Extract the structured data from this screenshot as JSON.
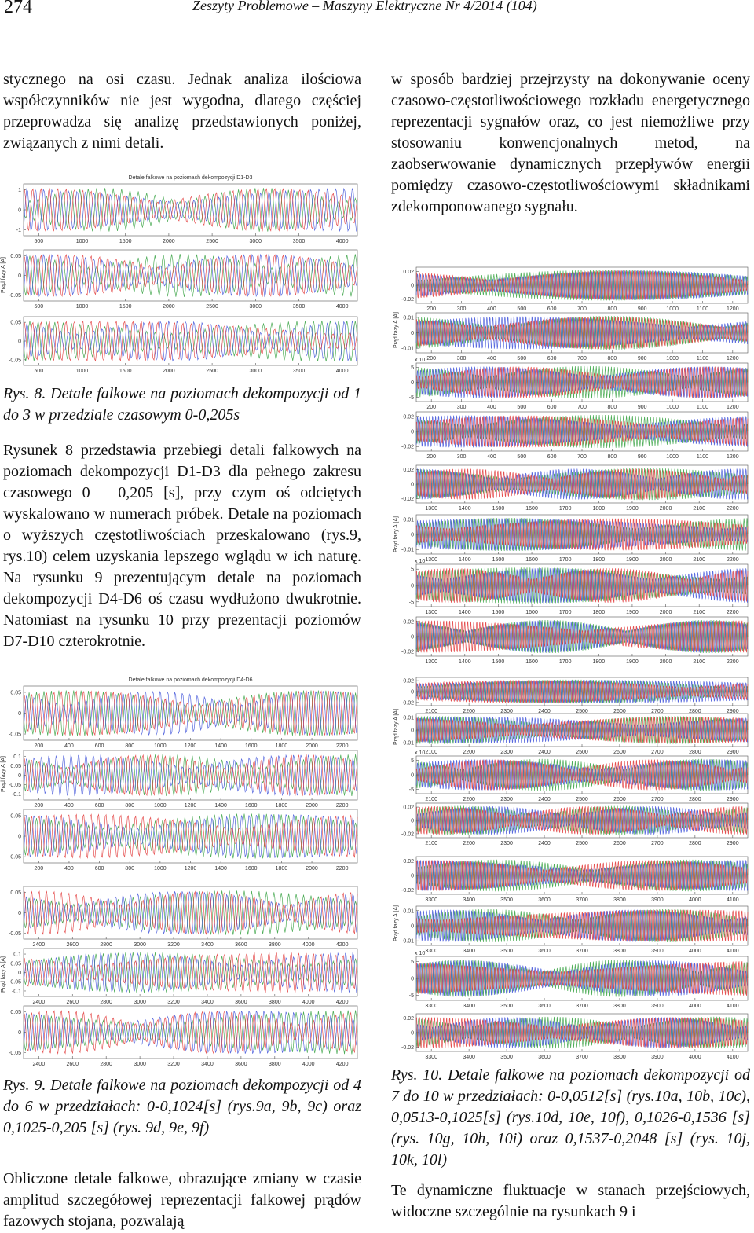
{
  "header": {
    "page_number": "274",
    "journal": "Zeszyty Problemowe – Maszyny Elektryczne Nr 4/2014 (104)"
  },
  "left_column": {
    "para1": "stycznego na osi czasu. Jednak analiza ilościowa współczynników nie jest wygodna, dlatego częściej przeprowadza się analizę przedstawionych poniżej, związanych z nimi detali.",
    "caption8": "Rys. 8. Detale falkowe na poziomach dekompozycji od 1 do 3 w przedziale czasowym 0-0,205s",
    "para2": "Rysunek 8 przedstawia przebiegi detali falkowych na poziomach dekompozycji D1-D3 dla pełnego zakresu czasowego 0 – 0,205 [s], przy czym oś odciętych wyskalowano w numerach próbek. Detale na poziomach o wyższych częstotliwościach przeskalowano (rys.9, rys.10) celem uzyskania lepszego wglądu w ich naturę. Na rysunku 9 prezentującym detale na poziomach dekompozycji D4-D6 oś czasu wydłużono dwukrotnie. Natomiast na rysunku 10 przy prezentacji poziomów D7-D10 czterokrotnie.",
    "caption9": "Rys. 9. Detale falkowe na poziomach dekompozycji od 4 do 6 w przedziałach: 0-0,1024[s] (rys.9a, 9b, 9c) oraz 0,1025-0,205 [s] (rys. 9d, 9e, 9f)",
    "para3": "Obliczone detale falkowe, obrazujące zmiany w czasie amplitud szczegółowej reprezentacji falkowej prądów fazowych stojana, pozwalają"
  },
  "right_column": {
    "para1": "w sposób bardziej przejrzysty na dokonywanie oceny czasowo-częstotliwościowego rozkładu energetycznego reprezentacji sygnałów oraz, co jest niemożliwe przy stosowaniu konwencjonalnych metod, na zaobserwowanie dynamicznych przepływów energii pomiędzy czasowo-częstotliwościowymi składnikami zdekomponowanego sygnału.",
    "caption10": "Rys. 10. Detale falkowe na poziomach dekompozycji od 7 do 10 w przedziałach: 0-0,0512[s] (rys.10a, 10b, 10c), 0,0513-0,1025[s] (rys.10d, 10e, 10f), 0,1026-0,1536 [s] (rys. 10g, 10h, 10i) oraz 0,1537-0,2048 [s] (rys. 10j, 10k, 10l)",
    "para2": "Te dynamiczne fluktuacje w stanach przejściowych, widoczne szczególnie na rysunkach 9 i"
  },
  "figures": [
    {
      "title": "Detale falkowe na poziomach dekompozycji D1-D3",
      "ylabel": "Prąd fazy A [A]",
      "panels": [
        {
          "yticks": [
            1,
            0,
            -1
          ],
          "xticks": [
            500,
            1000,
            1500,
            2000,
            2500,
            3000,
            3500,
            4000
          ]
        },
        {
          "yticks": [
            0.05,
            0,
            -0.05
          ],
          "xticks": [
            500,
            1000,
            1500,
            2000,
            2500,
            3000,
            3500,
            4000
          ]
        },
        {
          "yticks": [
            0.05,
            0,
            -0.05
          ],
          "xticks": [
            500,
            1000,
            1500,
            2000,
            2500,
            3000,
            3500,
            4000
          ]
        }
      ]
    },
    {
      "title": "Detale falkowe na poziomach dekompozycji D4-D6",
      "ylabel": "Prąd fazy A [A]",
      "panels": [
        {
          "yticks": [
            0.05,
            0,
            -0.05
          ],
          "xticks": [
            200,
            400,
            600,
            800,
            1000,
            1200,
            1400,
            1600,
            1800,
            2000,
            2200
          ]
        },
        {
          "yticks": [
            0.1,
            0.05,
            0,
            -0.05,
            -0.1
          ],
          "xticks": [
            200,
            400,
            600,
            800,
            1000,
            1200,
            1400,
            1600,
            1800,
            2000,
            2200
          ]
        },
        {
          "yticks": [
            0.05,
            0,
            -0.05
          ],
          "xticks": [
            200,
            400,
            600,
            800,
            1000,
            1200,
            1400,
            1600,
            1800,
            2000,
            2200
          ]
        }
      ]
    },
    {
      "ylabel": "Prąd fazy A [A]",
      "panels": [
        {
          "yticks": [
            0.05,
            0,
            -0.05
          ],
          "xticks": [
            2400,
            2600,
            2800,
            3000,
            3200,
            3400,
            3600,
            3800,
            4000,
            4200
          ]
        },
        {
          "yticks": [
            0.1,
            0.05,
            0,
            -0.05,
            -0.1
          ],
          "xticks": [
            2400,
            2600,
            2800,
            3000,
            3200,
            3400,
            3600,
            3800,
            4000,
            4200
          ]
        },
        {
          "yticks": [
            0.05,
            0,
            -0.05
          ],
          "xticks": [
            2400,
            2600,
            2800,
            3000,
            3200,
            3400,
            3600,
            3800,
            4000,
            4200
          ]
        }
      ]
    },
    {
      "ylabel": "Prąd fazy A [A]",
      "panels": [
        {
          "yticks": [
            0.02,
            0,
            -0.02
          ],
          "xticks": [
            200,
            300,
            400,
            500,
            600,
            700,
            800,
            900,
            1000,
            1100,
            1200
          ]
        },
        {
          "yticks": [
            0.01,
            0,
            -0.01
          ],
          "xticks": [
            200,
            300,
            400,
            500,
            600,
            700,
            800,
            900,
            1000,
            1100,
            1200
          ]
        },
        {
          "yticks": [
            5,
            0,
            -5
          ],
          "multiplier": "x 10",
          "xticks": [
            200,
            300,
            400,
            500,
            600,
            700,
            800,
            900,
            1000,
            1100,
            1200
          ]
        },
        {
          "yticks": [
            0.02,
            0,
            -0.02
          ],
          "xticks": [
            200,
            300,
            400,
            500,
            600,
            700,
            800,
            900,
            1000,
            1100,
            1200
          ]
        }
      ]
    },
    {
      "ylabel": "Prąd fazy A [A]",
      "panels": [
        {
          "yticks": [
            0.02,
            0,
            -0.02
          ],
          "xticks": [
            1300,
            1400,
            1500,
            1600,
            1700,
            1800,
            1900,
            2000,
            2100,
            2200
          ]
        },
        {
          "yticks": [
            0.01,
            0,
            -0.01
          ],
          "xticks": [
            1300,
            1400,
            1500,
            1600,
            1700,
            1800,
            1900,
            2000,
            2100,
            2200
          ]
        },
        {
          "yticks": [
            5,
            0,
            -5
          ],
          "multiplier": "x 10",
          "xticks": [
            1300,
            1400,
            1500,
            1600,
            1700,
            1800,
            1900,
            2000,
            2100,
            2200
          ]
        },
        {
          "yticks": [
            0.02,
            0,
            -0.02
          ],
          "xticks": [
            1300,
            1400,
            1500,
            1600,
            1700,
            1800,
            1900,
            2000,
            2100,
            2200
          ]
        }
      ]
    },
    {
      "ylabel": "Prąd fazy A [A]",
      "panels": [
        {
          "yticks": [
            0.02,
            0,
            -0.02
          ],
          "xticks": [
            2100,
            2200,
            2300,
            2400,
            2500,
            2600,
            2700,
            2800,
            2900
          ]
        },
        {
          "yticks": [
            0.01,
            0,
            -0.01
          ],
          "xticks": [
            2100,
            2200,
            2300,
            2400,
            2500,
            2600,
            2700,
            2800,
            2900
          ]
        },
        {
          "yticks": [
            5,
            0,
            -5
          ],
          "multiplier": "x 10",
          "xticks": [
            2100,
            2200,
            2300,
            2400,
            2500,
            2600,
            2700,
            2800,
            2900
          ]
        },
        {
          "yticks": [
            0.02,
            0,
            -0.02
          ],
          "xticks": [
            2100,
            2200,
            2300,
            2400,
            2500,
            2600,
            2700,
            2800,
            2900
          ]
        }
      ]
    },
    {
      "ylabel": "Prąd fazy A [A]",
      "panels": [
        {
          "yticks": [
            0.02,
            0,
            -0.02
          ],
          "xticks": [
            3300,
            3400,
            3500,
            3600,
            3700,
            3800,
            3900,
            4000,
            4100
          ]
        },
        {
          "yticks": [
            0.01,
            0,
            -0.01
          ],
          "xticks": [
            3300,
            3400,
            3500,
            3600,
            3700,
            3800,
            3900,
            4000,
            4100
          ]
        },
        {
          "yticks": [
            5,
            0,
            -5
          ],
          "multiplier": "x 10",
          "xticks": [
            3300,
            3400,
            3500,
            3600,
            3700,
            3800,
            3900,
            4000,
            4100
          ]
        },
        {
          "yticks": [
            0.02,
            0,
            -0.02
          ],
          "xticks": [
            3300,
            3400,
            3500,
            3600,
            3700,
            3800,
            3900,
            4000,
            4100
          ]
        }
      ]
    }
  ]
}
